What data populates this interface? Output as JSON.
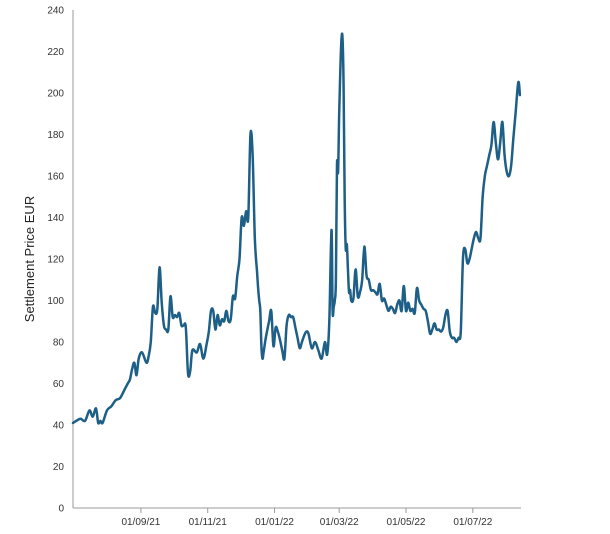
{
  "chart_data": {
    "type": "line",
    "title": "",
    "xlabel": "",
    "ylabel": "Settlement Price EUR",
    "ylim": [
      0,
      240
    ],
    "yticks": [
      0,
      20,
      40,
      60,
      80,
      100,
      120,
      140,
      160,
      180,
      200,
      220,
      240
    ],
    "xlim": [
      "2021-07-01",
      "2022-08-14"
    ],
    "xticks": [
      {
        "date": "2021-09-01",
        "label": "01/09/21"
      },
      {
        "date": "2021-11-01",
        "label": "01/11/21"
      },
      {
        "date": "2022-01-01",
        "label": "01/01/22"
      },
      {
        "date": "2022-03-01",
        "label": "01/03/22"
      },
      {
        "date": "2022-05-01",
        "label": "01/05/22"
      },
      {
        "date": "2022-07-01",
        "label": "01/07/22"
      }
    ],
    "grid": {
      "x": false,
      "y": false
    },
    "colors": {
      "line": "#1d5f86",
      "axis": "#9a9a9a"
    },
    "series": [
      {
        "x": [
          "2021-07-01",
          "2021-07-04",
          "2021-07-08",
          "2021-07-12",
          "2021-07-16",
          "2021-07-19",
          "2021-07-22",
          "2021-07-24",
          "2021-07-26",
          "2021-07-28",
          "2021-08-01",
          "2021-08-05",
          "2021-08-09",
          "2021-08-13",
          "2021-08-17",
          "2021-08-20",
          "2021-08-22",
          "2021-08-24",
          "2021-08-26",
          "2021-08-28",
          "2021-08-30",
          "2021-09-02",
          "2021-09-06",
          "2021-09-08",
          "2021-09-10",
          "2021-09-12",
          "2021-09-14",
          "2021-09-16",
          "2021-09-18",
          "2021-09-20",
          "2021-09-22",
          "2021-09-24",
          "2021-09-26",
          "2021-09-28",
          "2021-09-30",
          "2021-10-02",
          "2021-10-04",
          "2021-10-06",
          "2021-10-08",
          "2021-10-10",
          "2021-10-12",
          "2021-10-14",
          "2021-10-16",
          "2021-10-18",
          "2021-10-22",
          "2021-10-25",
          "2021-10-28",
          "2021-10-31",
          "2021-11-02",
          "2021-11-04",
          "2021-11-06",
          "2021-11-08",
          "2021-11-10",
          "2021-11-12",
          "2021-11-14",
          "2021-11-16",
          "2021-11-18",
          "2021-11-20",
          "2021-11-22",
          "2021-11-24",
          "2021-11-26",
          "2021-11-28",
          "2021-11-30",
          "2021-12-02",
          "2021-12-04",
          "2021-12-06",
          "2021-12-08",
          "2021-12-10",
          "2021-12-12",
          "2021-12-14",
          "2021-12-16",
          "2021-12-17",
          "2021-12-18",
          "2021-12-19",
          "2021-12-20",
          "2021-12-21",
          "2021-12-22",
          "2021-12-24",
          "2021-12-27",
          "2021-12-29",
          "2021-12-31",
          "2022-01-02",
          "2022-01-04",
          "2022-01-06",
          "2022-01-08",
          "2022-01-10",
          "2022-01-12",
          "2022-01-14",
          "2022-01-16",
          "2022-01-18",
          "2022-01-20",
          "2022-01-22",
          "2022-01-24",
          "2022-01-26",
          "2022-01-28",
          "2022-01-30",
          "2022-02-01",
          "2022-02-04",
          "2022-02-07",
          "2022-02-10",
          "2022-02-13",
          "2022-02-16",
          "2022-02-18",
          "2022-02-20",
          "2022-02-22",
          "2022-02-23",
          "2022-02-24",
          "2022-02-25",
          "2022-02-26",
          "2022-02-27",
          "2022-02-28",
          "2022-03-01",
          "2022-03-02",
          "2022-03-03",
          "2022-03-04",
          "2022-03-05",
          "2022-03-06",
          "2022-03-07",
          "2022-03-08",
          "2022-03-09",
          "2022-03-10",
          "2022-03-11",
          "2022-03-12",
          "2022-03-14",
          "2022-03-16",
          "2022-03-18",
          "2022-03-20",
          "2022-03-22",
          "2022-03-24",
          "2022-03-26",
          "2022-03-28",
          "2022-03-30",
          "2022-04-01",
          "2022-04-03",
          "2022-04-05",
          "2022-04-07",
          "2022-04-09",
          "2022-04-11",
          "2022-04-13",
          "2022-04-15",
          "2022-04-17",
          "2022-04-19",
          "2022-04-21",
          "2022-04-23",
          "2022-04-25",
          "2022-04-27",
          "2022-04-29",
          "2022-05-01",
          "2022-05-03",
          "2022-05-05",
          "2022-05-07",
          "2022-05-09",
          "2022-05-11",
          "2022-05-13",
          "2022-05-15",
          "2022-05-17",
          "2022-05-19",
          "2022-05-21",
          "2022-05-23",
          "2022-05-25",
          "2022-05-27",
          "2022-05-29",
          "2022-05-31",
          "2022-06-02",
          "2022-06-04",
          "2022-06-06",
          "2022-06-08",
          "2022-06-10",
          "2022-06-12",
          "2022-06-14",
          "2022-06-16",
          "2022-06-18",
          "2022-06-20",
          "2022-06-22",
          "2022-06-24",
          "2022-06-26",
          "2022-06-28",
          "2022-06-30",
          "2022-07-02",
          "2022-07-04",
          "2022-07-06",
          "2022-07-08",
          "2022-07-10",
          "2022-07-12",
          "2022-07-14",
          "2022-07-16",
          "2022-07-18",
          "2022-07-20",
          "2022-07-22",
          "2022-07-24",
          "2022-07-26",
          "2022-07-28",
          "2022-07-30",
          "2022-08-01",
          "2022-08-03",
          "2022-08-05",
          "2022-08-07",
          "2022-08-09",
          "2022-08-11",
          "2022-08-12",
          "2022-08-13"
        ],
        "y": [
          41,
          42,
          43,
          42,
          47,
          44,
          48,
          41,
          42,
          41,
          47,
          49,
          52,
          53,
          57,
          60,
          62,
          67,
          70,
          64,
          72,
          75,
          70,
          73,
          80,
          97,
          94,
          96,
          116,
          99,
          88,
          86,
          86,
          102,
          92,
          93,
          92,
          94,
          88,
          88,
          87,
          65,
          66,
          76,
          75,
          79,
          72,
          79,
          85,
          95,
          95,
          86,
          93,
          88,
          91,
          90,
          95,
          90,
          91,
          102,
          101,
          112,
          120,
          140,
          136,
          143,
          140,
          180,
          170,
          130,
          114,
          106,
          100,
          95,
          78,
          72,
          75,
          82,
          90,
          95,
          78,
          87,
          85,
          81,
          76,
          72,
          88,
          93,
          92,
          92,
          87,
          82,
          77,
          80,
          83,
          85,
          84,
          77,
          80,
          76,
          72,
          80,
          74,
          90,
          134,
          95,
          97,
          100,
          110,
          165,
          162,
          190,
          210,
          225,
          227,
          205,
          150,
          125,
          127,
          115,
          104,
          105,
          100,
          101,
          115,
          102,
          104,
          110,
          126,
          112,
          110,
          105,
          105,
          104,
          103,
          108,
          100,
          101,
          98,
          95,
          97,
          96,
          94,
          98,
          100,
          95,
          107,
          95,
          99,
          95,
          96,
          94,
          106,
          100,
          98,
          96,
          95,
          90,
          84,
          86,
          89,
          86,
          86,
          85,
          87,
          93,
          95,
          85,
          82,
          82,
          80,
          82,
          85,
          120,
          125,
          118,
          120,
          125,
          130,
          133,
          130,
          130,
          150,
          160,
          165,
          170,
          175,
          186,
          176,
          168,
          176,
          186,
          170,
          162,
          160,
          165,
          178,
          190,
          203,
          205,
          199
        ]
      }
    ]
  }
}
